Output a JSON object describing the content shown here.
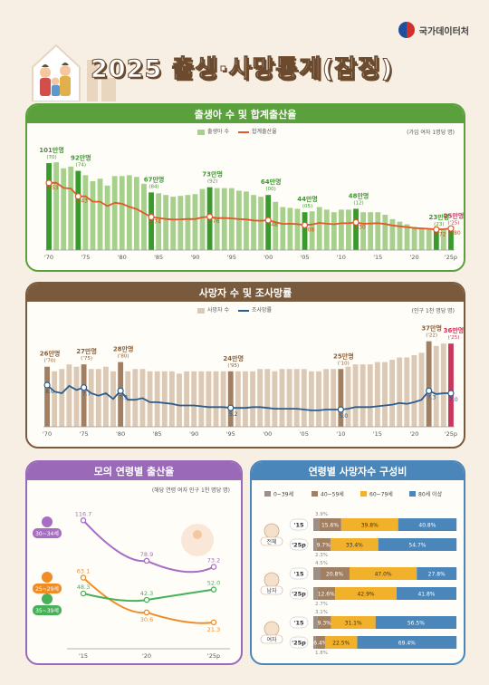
{
  "header": {
    "org": "국가데이터처",
    "title": "2025 출생·사망통계(잠정)"
  },
  "colors": {
    "births": "#a8d08d",
    "births_hl": "#3b9a2e",
    "tfr": "#e0592a",
    "deaths": "#dcc9b5",
    "deaths_hl": "#a07f63",
    "deaths_last": "#c8365b",
    "cdr": "#2a5d8f",
    "age30": "#a86ec4",
    "age25": "#f08c25",
    "age35": "#48b058",
    "g1": "#9b8f88",
    "g2": "#a07f63",
    "g3": "#f2b12b",
    "g4": "#4a86b9"
  },
  "births_panel": {
    "title": "출생아 수 및 합계출산율",
    "legend_bar": "출생아 수",
    "legend_line": "합계출산율",
    "unit_note": "(가임 여자 1명당 명)",
    "x_ticks": [
      "'70",
      "'75",
      "'80",
      "'85",
      "'90",
      "'95",
      "'00",
      "'05",
      "'10",
      "'15",
      "'20",
      "'25p"
    ],
    "callouts": [
      {
        "val": "101만명",
        "sub": "(70)",
        "tfr": "4.53"
      },
      {
        "val": "92만명",
        "sub": "(74)",
        "tfr": "3.43"
      },
      {
        "val": "67만명",
        "sub": "(84)",
        "tfr": "1.74"
      },
      {
        "val": "73만명",
        "sub": "(92)",
        "tfr": "1.76"
      },
      {
        "val": "64만명",
        "sub": "(00)",
        "tfr": "1.48"
      },
      {
        "val": "44만명",
        "sub": "(05)",
        "tfr": "1.08"
      },
      {
        "val": "48만명",
        "sub": "(12)",
        "tfr": "1.30"
      },
      {
        "val": "23만명",
        "sub": "(23)",
        "tfr": "0.72"
      },
      {
        "val": "25만명",
        "sub": "('25)",
        "tfr": "0.80"
      }
    ]
  },
  "deaths_panel": {
    "title": "사망자 수 및 조사망률",
    "legend_bar": "사망자 수",
    "legend_line": "조사망률",
    "unit_note": "(인구 1천 명당 명)",
    "x_ticks": [
      "'70",
      "'75",
      "'80",
      "'85",
      "'90",
      "'95",
      "'00",
      "'05",
      "'10",
      "'15",
      "'20",
      "'25p"
    ],
    "callouts": [
      {
        "val": "26만명",
        "sub": "('70)",
        "cdr": "8.0"
      },
      {
        "val": "27만명",
        "sub": "('75)",
        "cdr": "7.7"
      },
      {
        "val": "28만명",
        "sub": "('80)",
        "cdr": "7.3"
      },
      {
        "val": "24만명",
        "sub": "('95)",
        "cdr": "5.2"
      },
      {
        "val": "25만명",
        "sub": "('10)",
        "cdr": "5.0"
      },
      {
        "val": "37만명",
        "sub": "('22)",
        "cdr": "7.3"
      },
      {
        "val": "36만명",
        "sub": "('25)",
        "cdr": "7.0"
      }
    ]
  },
  "asfr_panel": {
    "title": "모의 연령별 출산율",
    "unit_note": "(해당 연령 여자 인구 1천 명당 명)",
    "groups": [
      "30~34세",
      "25~29세",
      "35~39세"
    ],
    "x_ticks": [
      "'15",
      "'20",
      "'25p"
    ],
    "series": [
      {
        "name": "30~34세",
        "values": [
          116.7,
          78.9,
          73.2
        ]
      },
      {
        "name": "25~29세",
        "values": [
          63.1,
          30.6,
          21.3
        ]
      },
      {
        "name": "35~39세",
        "values": [
          48.3,
          42.3,
          52.0
        ]
      }
    ]
  },
  "age_comp_panel": {
    "title": "연령별 사망자수 구성비",
    "legend": [
      "0~39세",
      "40~59세",
      "60~79세",
      "80세 이상"
    ],
    "groups": [
      {
        "label": "전체",
        "rows": [
          {
            "year": "'15",
            "small": "3.9%",
            "vals": [
              3.9,
              15.6,
              39.8,
              40.8
            ],
            "labels": [
              "",
              "15.6%",
              "39.8%",
              "40.8%"
            ]
          },
          {
            "year": "'25p",
            "small": "2.3%",
            "vals": [
              2.3,
              9.7,
              33.4,
              54.7
            ],
            "labels": [
              "",
              "9.7%",
              "33.4%",
              "54.7%"
            ]
          }
        ]
      },
      {
        "label": "남자",
        "rows": [
          {
            "year": "'15",
            "small": "4.5%",
            "vals": [
              4.5,
              20.8,
              47.0,
              27.8
            ],
            "labels": [
              "",
              "20.8%",
              "47.0%",
              "27.8%"
            ]
          },
          {
            "year": "'25p",
            "small": "2.7%",
            "vals": [
              2.7,
              12.6,
              42.9,
              41.8
            ],
            "labels": [
              "",
              "12.6%",
              "42.9%",
              "41.8%"
            ]
          }
        ]
      },
      {
        "label": "여자",
        "rows": [
          {
            "year": "'15",
            "small": "3.1%",
            "vals": [
              3.1,
              9.3,
              31.1,
              56.5
            ],
            "labels": [
              "",
              "9.3%",
              "31.1%",
              "56.5%"
            ]
          },
          {
            "year": "'25p",
            "small": "1.8%",
            "vals": [
              1.8,
              6.4,
              22.5,
              69.4
            ],
            "labels": [
              "",
              "6.4%",
              "22.5%",
              "69.4%"
            ]
          }
        ]
      }
    ]
  },
  "chart_data": [
    {
      "type": "bar",
      "title": "출생아 수 및 합계출산율",
      "x": [
        "1970",
        "1971",
        "1972",
        "1973",
        "1974",
        "1975",
        "1976",
        "1977",
        "1978",
        "1979",
        "1980",
        "1981",
        "1982",
        "1983",
        "1984",
        "1985",
        "1986",
        "1987",
        "1988",
        "1989",
        "1990",
        "1991",
        "1992",
        "1993",
        "1994",
        "1995",
        "1996",
        "1997",
        "1998",
        "1999",
        "2000",
        "2001",
        "2002",
        "2003",
        "2004",
        "2005",
        "2006",
        "2007",
        "2008",
        "2009",
        "2010",
        "2011",
        "2012",
        "2013",
        "2014",
        "2015",
        "2016",
        "2017",
        "2018",
        "2019",
        "2020",
        "2021",
        "2022",
        "2023",
        "2024",
        "2025"
      ],
      "series": [
        {
          "name": "출생아 수",
          "unit": "만명",
          "values": [
            101,
            102,
            95,
            97,
            92,
            87,
            80,
            83,
            75,
            86,
            86,
            87,
            85,
            77,
            67,
            66,
            64,
            62,
            63,
            64,
            65,
            71,
            73,
            72,
            72,
            72,
            69,
            68,
            64,
            62,
            64,
            56,
            50,
            49,
            48,
            44,
            45,
            50,
            47,
            44,
            47,
            47,
            48,
            44,
            44,
            44,
            41,
            36,
            33,
            30,
            27,
            26,
            25,
            23,
            24,
            25
          ]
        },
        {
          "name": "합계출산율",
          "unit": "명",
          "values": [
            4.53,
            4.54,
            4.12,
            4.07,
            3.43,
            3.43,
            3.0,
            2.99,
            2.64,
            2.9,
            2.82,
            2.57,
            2.39,
            2.06,
            1.74,
            1.66,
            1.58,
            1.53,
            1.55,
            1.58,
            1.57,
            1.71,
            1.76,
            1.65,
            1.66,
            1.63,
            1.57,
            1.54,
            1.46,
            1.43,
            1.48,
            1.31,
            1.18,
            1.19,
            1.16,
            1.08,
            1.13,
            1.26,
            1.19,
            1.15,
            1.23,
            1.24,
            1.3,
            1.19,
            1.21,
            1.24,
            1.17,
            1.05,
            0.98,
            0.92,
            0.84,
            0.81,
            0.78,
            0.72,
            0.75,
            0.8
          ]
        }
      ]
    },
    {
      "type": "bar",
      "title": "사망자 수 및 조사망률",
      "x": [
        "1970",
        "1971",
        "1972",
        "1973",
        "1974",
        "1975",
        "1976",
        "1977",
        "1978",
        "1979",
        "1980",
        "1981",
        "1982",
        "1983",
        "1984",
        "1985",
        "1986",
        "1987",
        "1988",
        "1989",
        "1990",
        "1991",
        "1992",
        "1993",
        "1994",
        "1995",
        "1996",
        "1997",
        "1998",
        "1999",
        "2000",
        "2001",
        "2002",
        "2003",
        "2004",
        "2005",
        "2006",
        "2007",
        "2008",
        "2009",
        "2010",
        "2011",
        "2012",
        "2013",
        "2014",
        "2015",
        "2016",
        "2017",
        "2018",
        "2019",
        "2020",
        "2021",
        "2022",
        "2023",
        "2024",
        "2025"
      ],
      "series": [
        {
          "name": "사망자 수",
          "unit": "만명",
          "values": [
            26,
            24,
            25,
            27,
            26,
            27,
            25,
            25,
            26,
            24,
            28,
            24,
            25,
            25,
            24,
            24,
            24,
            24,
            23,
            24,
            24,
            24,
            24,
            24,
            24,
            24,
            24,
            24,
            24,
            25,
            25,
            24,
            25,
            25,
            25,
            25,
            24,
            24,
            25,
            25,
            25,
            26,
            27,
            27,
            27,
            28,
            28,
            29,
            30,
            30,
            31,
            32,
            37,
            35,
            36,
            36
          ]
        },
        {
          "name": "조사망률",
          "unit": "명",
          "values": [
            8.0,
            7.2,
            7.0,
            7.9,
            7.4,
            7.7,
            7.0,
            6.7,
            7.0,
            6.3,
            7.3,
            6.2,
            6.2,
            6.4,
            5.9,
            5.9,
            5.8,
            5.7,
            5.5,
            5.5,
            5.5,
            5.4,
            5.3,
            5.3,
            5.3,
            5.2,
            5.2,
            5.2,
            5.3,
            5.3,
            5.2,
            5.1,
            5.1,
            5.1,
            5.1,
            5.0,
            4.9,
            4.9,
            5.0,
            5.0,
            5.0,
            5.1,
            5.3,
            5.3,
            5.3,
            5.4,
            5.5,
            5.6,
            5.8,
            5.7,
            5.9,
            6.2,
            7.3,
            6.9,
            7.0,
            7.0
          ]
        }
      ]
    },
    {
      "type": "line",
      "title": "모의 연령별 출산율",
      "x": [
        "'15",
        "'20",
        "'25p"
      ],
      "series": [
        {
          "name": "30~34세",
          "values": [
            116.7,
            78.9,
            73.2
          ]
        },
        {
          "name": "25~29세",
          "values": [
            63.1,
            30.6,
            21.3
          ]
        },
        {
          "name": "35~39세",
          "values": [
            48.3,
            42.3,
            52.0
          ]
        }
      ]
    },
    {
      "type": "bar",
      "title": "연령별 사망자수 구성비",
      "categories": [
        "전체 '15",
        "전체 '25p",
        "남자 '15",
        "남자 '25p",
        "여자 '15",
        "여자 '25p"
      ],
      "series": [
        {
          "name": "0~39세",
          "values": [
            3.9,
            2.3,
            4.5,
            2.7,
            3.1,
            1.8
          ]
        },
        {
          "name": "40~59세",
          "values": [
            15.6,
            9.7,
            20.8,
            12.6,
            9.3,
            6.4
          ]
        },
        {
          "name": "60~79세",
          "values": [
            39.8,
            33.4,
            47.0,
            42.9,
            31.1,
            22.5
          ]
        },
        {
          "name": "80세 이상",
          "values": [
            40.8,
            54.7,
            27.8,
            41.8,
            56.5,
            69.4
          ]
        }
      ]
    }
  ]
}
